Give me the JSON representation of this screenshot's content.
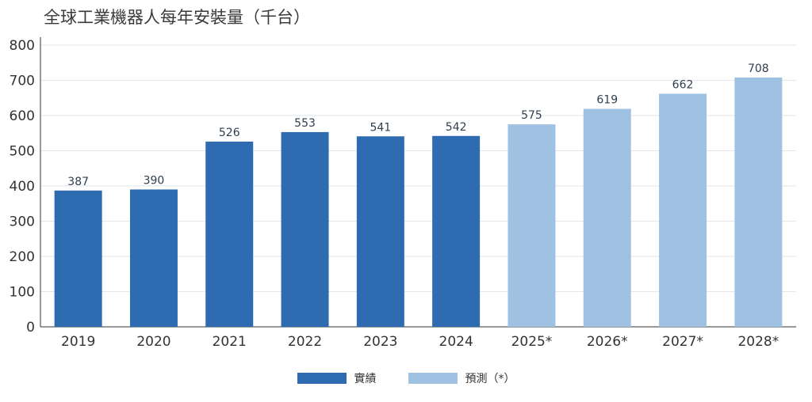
{
  "chart_data": {
    "type": "bar",
    "title": "全球工業機器人每年安裝量（千台）",
    "categories": [
      "2019",
      "2020",
      "2021",
      "2022",
      "2023",
      "2024",
      "2025*",
      "2026*",
      "2027*",
      "2028*"
    ],
    "values": [
      387,
      390,
      526,
      553,
      541,
      542,
      575,
      619,
      662,
      708
    ],
    "kinds": [
      "actual",
      "actual",
      "actual",
      "actual",
      "actual",
      "actual",
      "forecast",
      "forecast",
      "forecast",
      "forecast"
    ],
    "ylim": [
      0,
      800
    ],
    "yticks": [
      0,
      100,
      200,
      300,
      400,
      500,
      600,
      700,
      800
    ],
    "grid": true,
    "legend_position": "bottom-center",
    "colors": {
      "actual": "#2e6bb0",
      "forecast": "#9fc2e3"
    },
    "legend": [
      {
        "key": "actual",
        "label": "實績"
      },
      {
        "key": "forecast",
        "label": "預測（*）"
      }
    ]
  }
}
